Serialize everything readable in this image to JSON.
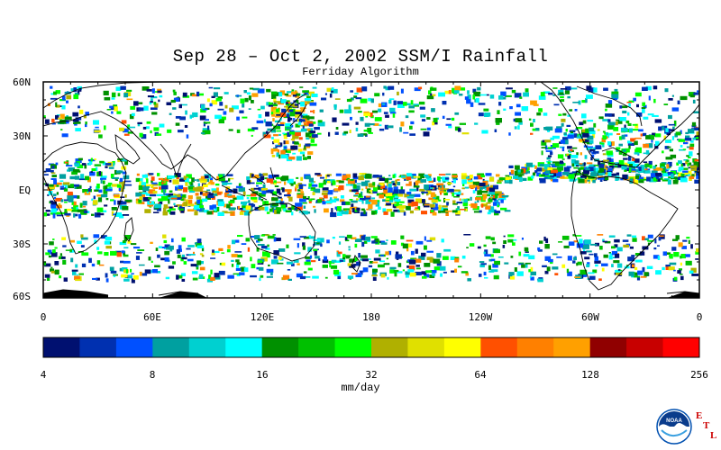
{
  "title": "Sep 28 – Oct 2, 2002 SSM/I Rainfall",
  "subtitle": "Ferriday Algorithm",
  "y_axis_labels": [
    "60N",
    "30N",
    "EQ",
    "30S",
    "60S"
  ],
  "x_axis_labels": [
    "0",
    "60E",
    "120E",
    "180",
    "120W",
    "60W",
    "0"
  ],
  "colorbar": {
    "tick_labels": [
      "4",
      "8",
      "16",
      "32",
      "64",
      "128",
      "256"
    ],
    "units": "mm/day",
    "colors": [
      "#001070",
      "#0030b0",
      "#0050ff",
      "#00a0a0",
      "#00d0d0",
      "#00ffff",
      "#009000",
      "#00c000",
      "#00ff00",
      "#b0b000",
      "#e0e000",
      "#ffff00",
      "#ff5000",
      "#ff8000",
      "#ffa000",
      "#900000",
      "#c80000",
      "#ff0000"
    ]
  },
  "logo": {
    "org": "NOAA",
    "lab_letters": [
      "E",
      "T",
      "L"
    ]
  },
  "map_colors": {
    "land_outline": "#000000",
    "ocean": "#ffffff"
  }
}
